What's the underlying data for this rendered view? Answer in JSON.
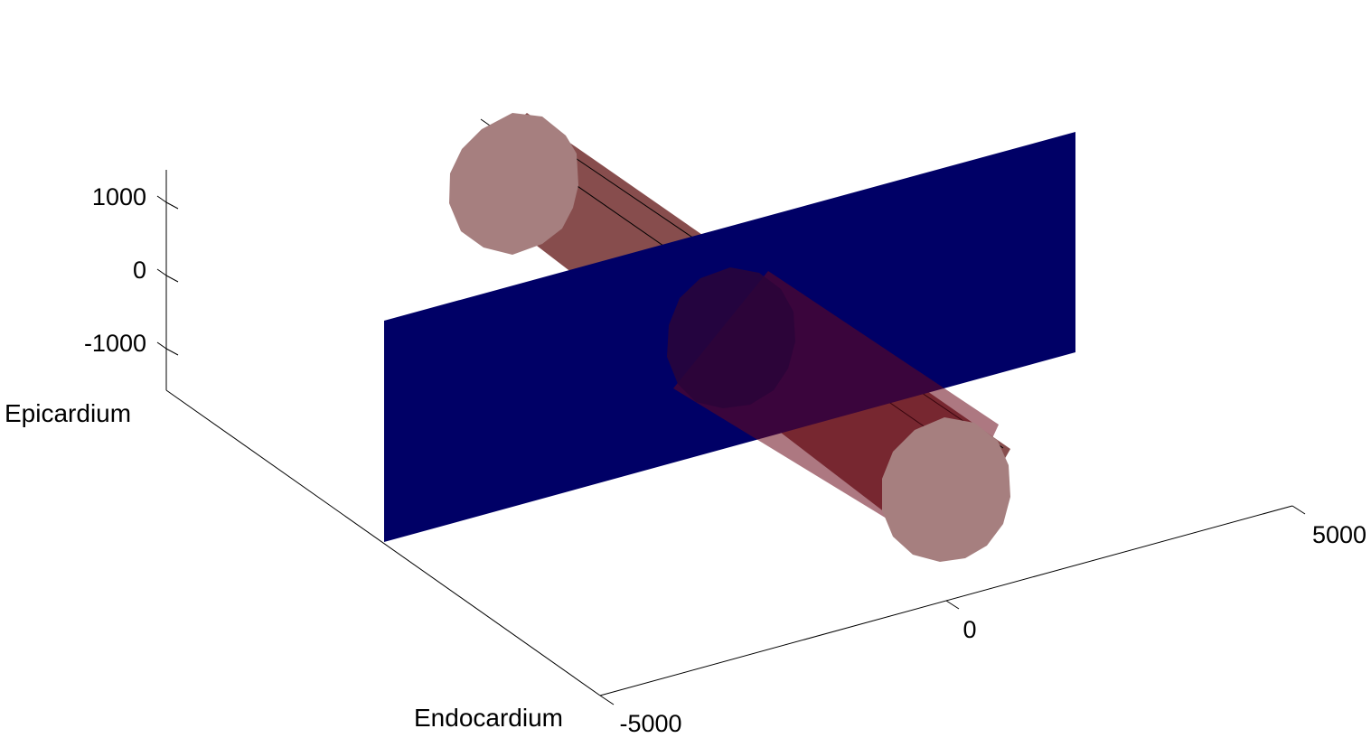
{
  "chart_data": {
    "type": "3d-surface",
    "title": "",
    "xlabel": "",
    "ylabel": "Endocardium",
    "zlabel": "Epicardium",
    "x_ticks": [
      "-5000",
      "0",
      "5000"
    ],
    "z_ticks": [
      "1000",
      "0",
      "-1000"
    ],
    "grid": false,
    "objects": [
      {
        "kind": "plane",
        "color": "#000066"
      },
      {
        "kind": "cylinder",
        "color": "#7a3a3a",
        "cap_color": "#a67f7f"
      }
    ]
  }
}
